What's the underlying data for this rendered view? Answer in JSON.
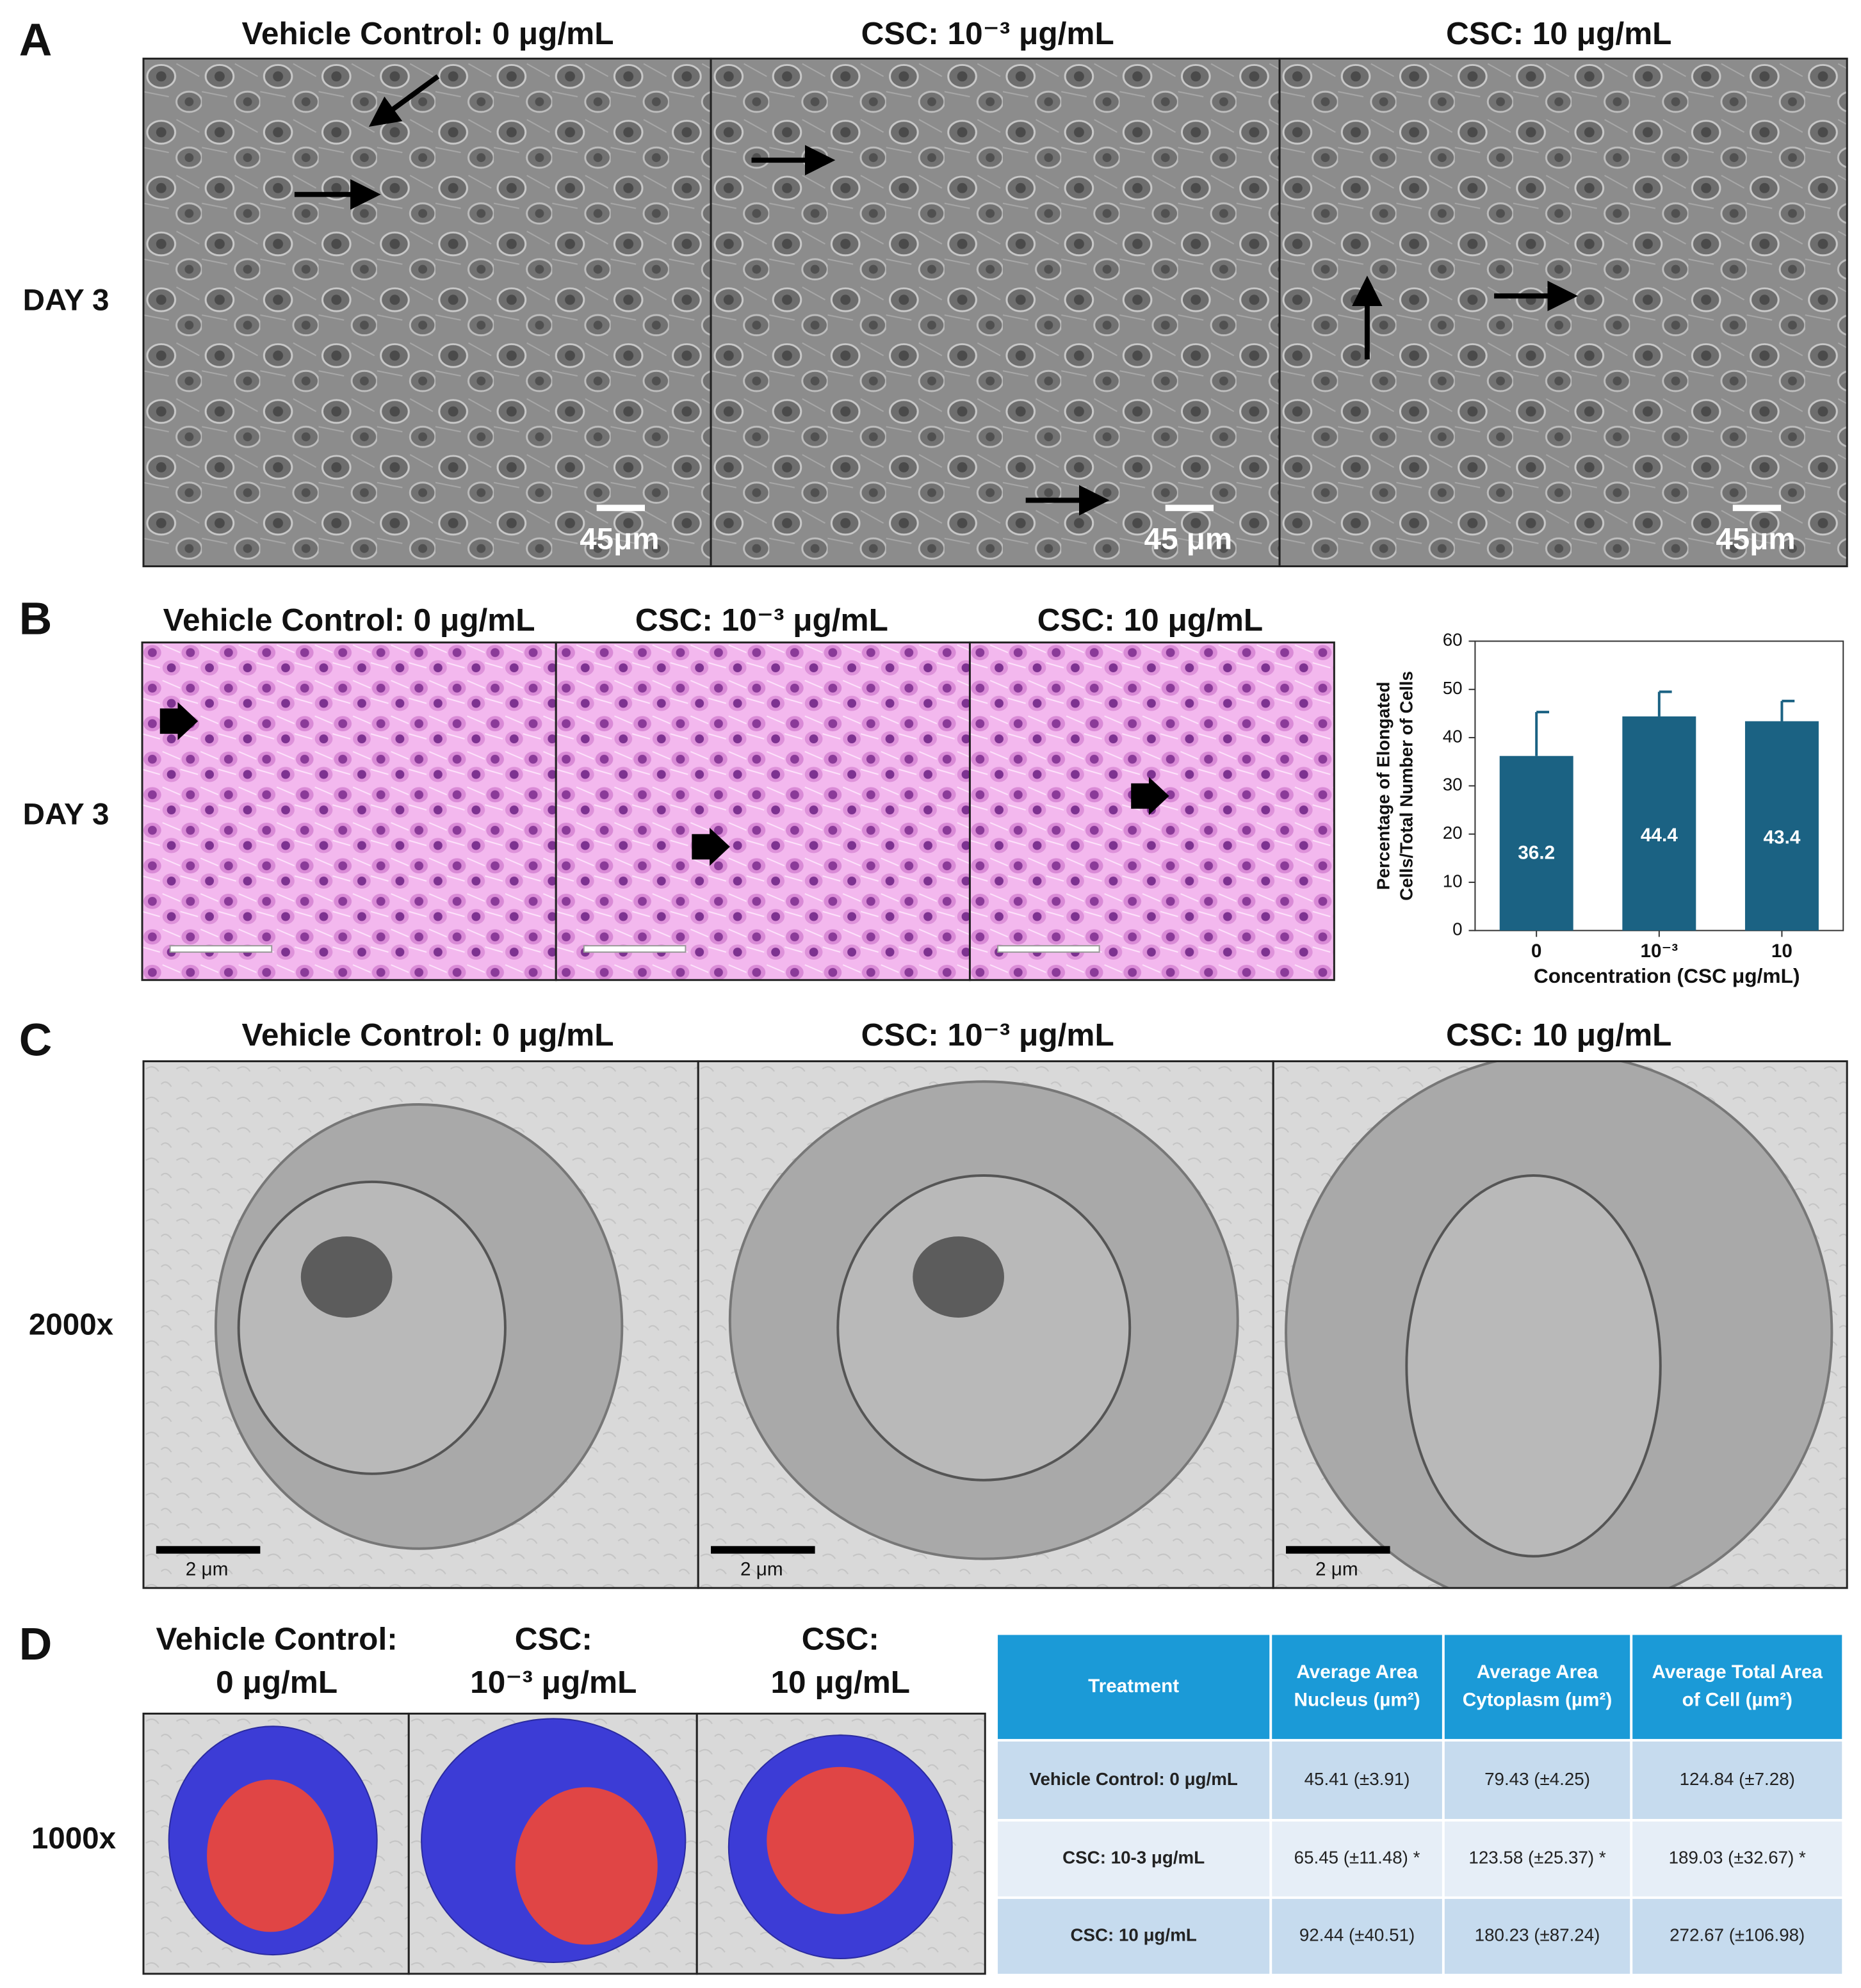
{
  "panel_labels": [
    "A",
    "B",
    "C",
    "D"
  ],
  "panel_a": {
    "row_label": "DAY 3",
    "titles": [
      "Vehicle Control: 0 μg/mL",
      "CSC: 10⁻³ μg/mL",
      "CSC: 10 μg/mL"
    ],
    "scale_bars": [
      "45μm",
      "45 μm",
      "45μm"
    ]
  },
  "panel_b": {
    "row_label": "DAY 3",
    "titles": [
      "Vehicle Control: 0 μg/mL",
      "CSC: 10⁻³ μg/mL",
      "CSC: 10 μg/mL"
    ]
  },
  "chart_data": {
    "type": "bar",
    "categories": [
      "0",
      "10⁻³",
      "10"
    ],
    "values": [
      36.2,
      44.4,
      43.4
    ],
    "errors": [
      9.1,
      5.1,
      4.2
    ],
    "color": "#1b6283",
    "ylim": [
      0,
      60
    ],
    "yticks": [
      0,
      10,
      20,
      30,
      40,
      50,
      60
    ],
    "ylabel": [
      "Percentage of Elongated",
      "Cells/Total Number of Cells"
    ],
    "xlabel": "Concentration (CSC μg/mL)"
  },
  "panel_c": {
    "row_label": "2000x",
    "titles": [
      "Vehicle Control: 0 μg/mL",
      "CSC: 10⁻³ μg/mL",
      "CSC: 10 μg/mL"
    ],
    "scale_bars": [
      "2 μm",
      "2 μm",
      "2 μm"
    ]
  },
  "panel_d": {
    "row_label": "1000x",
    "titles": [
      [
        "Vehicle Control:",
        "0 μg/mL"
      ],
      [
        "CSC:",
        "10⁻³ μg/mL"
      ],
      [
        "CSC:",
        "10 μg/mL"
      ]
    ],
    "table": {
      "header": [
        [
          "Treatment"
        ],
        [
          "Average Area",
          "Nucleus (µm²)"
        ],
        [
          "Average Area",
          "Cytoplasm (µm²)"
        ],
        [
          "Average Total Area",
          "of Cell (µm²)"
        ]
      ],
      "rows": [
        [
          "Vehicle Control: 0 μg/mL",
          "45.41 (±3.91)",
          "79.43 (±4.25)",
          "124.84 (±7.28)"
        ],
        [
          "CSC: 10-3 μg/mL",
          "65.45 (±11.48) *",
          "123.58 (±25.37) *",
          "189.03 (±32.67) *"
        ],
        [
          "CSC: 10 μg/mL",
          "92.44 (±40.51)",
          "180.23 (±87.24)",
          "272.67 (±106.98)"
        ]
      ]
    }
  }
}
